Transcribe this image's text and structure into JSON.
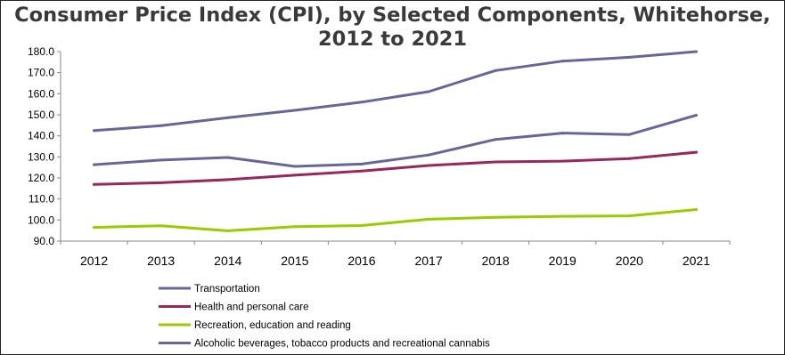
{
  "chart_data": {
    "type": "line",
    "title_line1": "Consumer Price Index (CPI), by Selected Components, Whitehorse,",
    "title_line2": "2012 to 2021",
    "x": [
      "2012",
      "2013",
      "2014",
      "2015",
      "2016",
      "2017",
      "2018",
      "2019",
      "2020",
      "2021"
    ],
    "ylim": [
      90,
      180
    ],
    "yticks": [
      "90.0",
      "100.0",
      "110.0",
      "120.0",
      "130.0",
      "140.0",
      "150.0",
      "160.0",
      "170.0",
      "180.0"
    ],
    "grid": false,
    "legend_position": "bottom-left",
    "series": [
      {
        "name": "Transportation",
        "color": "#666699",
        "values": [
          126.3,
          128.5,
          129.7,
          125.5,
          126.6,
          130.9,
          138.3,
          141.3,
          140.6,
          149.8
        ]
      },
      {
        "name": "Health and personal care",
        "color": "#99285a",
        "values": [
          116.9,
          117.7,
          119.2,
          121.3,
          123.3,
          125.9,
          127.6,
          128.0,
          129.2,
          132.2
        ]
      },
      {
        "name": "Recreation, education and reading",
        "color": "#99cc00",
        "values": [
          96.5,
          97.3,
          94.9,
          96.9,
          97.4,
          100.4,
          101.3,
          101.8,
          102.0,
          105.0
        ]
      },
      {
        "name": "Alcoholic beverages, tobacco products and recreational cannabis",
        "color": "#666699",
        "values": [
          142.5,
          144.8,
          148.6,
          152.1,
          156.0,
          161.0,
          171.0,
          175.5,
          177.3,
          180.0
        ]
      }
    ]
  }
}
